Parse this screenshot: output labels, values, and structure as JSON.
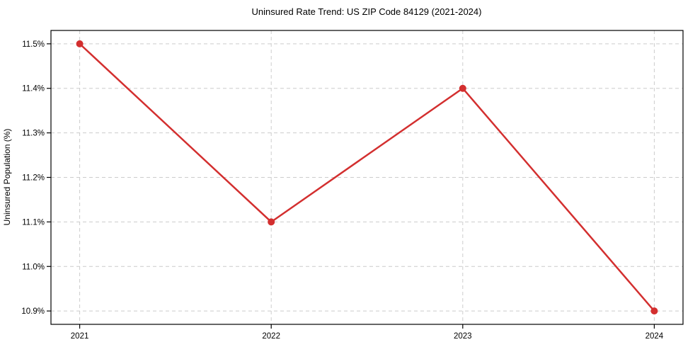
{
  "chart_data": {
    "type": "line",
    "title": "Uninsured Rate Trend: US ZIP Code 84129 (2021-2024)",
    "xlabel": "",
    "ylabel": "Uninsured Population (%)",
    "x": [
      2021,
      2022,
      2023,
      2024
    ],
    "x_tick_labels": [
      "2021",
      "2022",
      "2023",
      "2024"
    ],
    "series": [
      {
        "name": "uninsured-rate",
        "values": [
          11.5,
          11.1,
          11.4,
          10.9
        ],
        "color": "#d32f2f",
        "marker": "circle",
        "marker_radius": 5,
        "line_width": 2.5
      }
    ],
    "y_ticks": [
      10.9,
      11.0,
      11.1,
      11.2,
      11.3,
      11.4,
      11.5
    ],
    "y_tick_labels": [
      "10.9%",
      "11.0%",
      "11.1%",
      "11.2%",
      "11.3%",
      "11.4%",
      "11.5%"
    ],
    "xlim": [
      2020.85,
      2024.15
    ],
    "ylim": [
      10.87,
      11.53
    ],
    "grid": true,
    "grid_style": "dashed",
    "legend_position": "none",
    "colors": {
      "line": "#d32f2f",
      "marker": "#d32f2f",
      "grid": "#cccccc",
      "axis": "#000000",
      "text": "#000000",
      "background": "#ffffff"
    }
  }
}
